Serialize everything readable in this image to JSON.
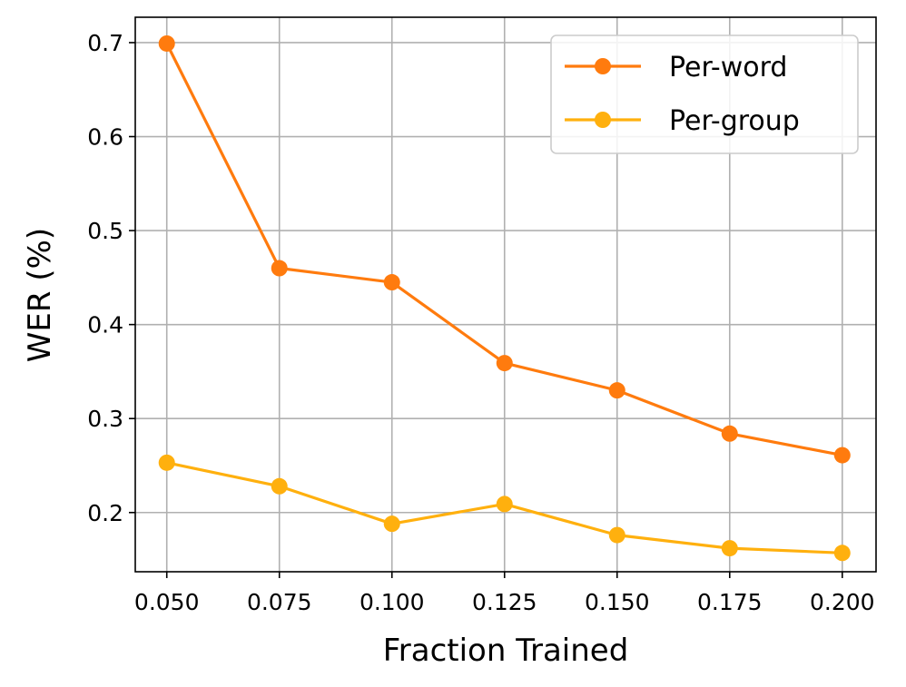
{
  "chart_data": {
    "type": "line",
    "xlabel": "Fraction Trained",
    "ylabel": "WER (%)",
    "x": [
      0.05,
      0.075,
      0.1,
      0.125,
      0.15,
      0.175,
      0.2
    ],
    "x_tick_labels": [
      "0.050",
      "0.075",
      "0.100",
      "0.125",
      "0.150",
      "0.175",
      "0.200"
    ],
    "y_ticks": [
      0.2,
      0.3,
      0.4,
      0.5,
      0.6,
      0.7
    ],
    "y_tick_labels": [
      "0.2",
      "0.3",
      "0.4",
      "0.5",
      "0.6",
      "0.7"
    ],
    "xlim": [
      0.043,
      0.2075
    ],
    "ylim": [
      0.137,
      0.727
    ],
    "grid": true,
    "legend_position": "upper right",
    "series": [
      {
        "name": "Per-word",
        "color": "#ff7b0e",
        "marker": "circle",
        "values": [
          0.699,
          0.46,
          0.445,
          0.359,
          0.33,
          0.284,
          0.261
        ]
      },
      {
        "name": "Per-group",
        "color": "#ffb00e",
        "marker": "circle",
        "values": [
          0.253,
          0.228,
          0.188,
          0.209,
          0.176,
          0.162,
          0.157
        ]
      }
    ]
  }
}
